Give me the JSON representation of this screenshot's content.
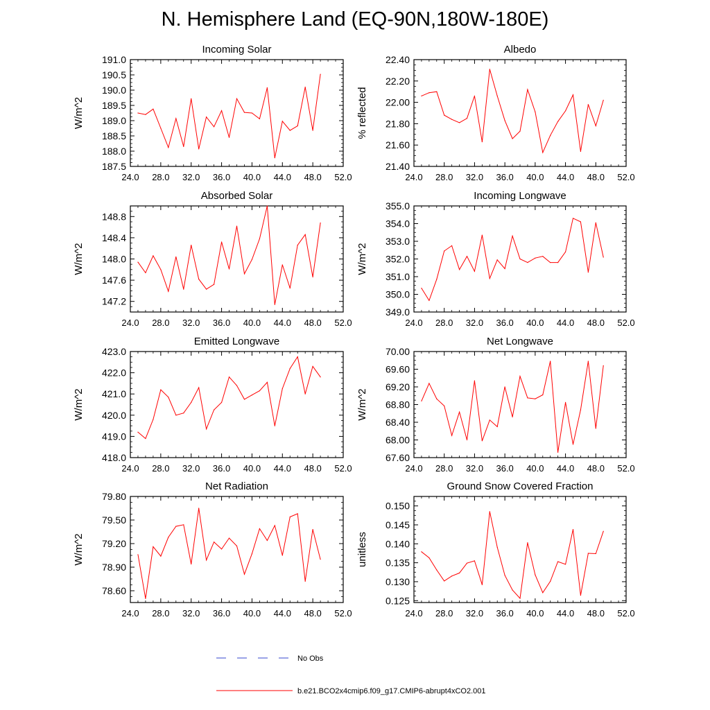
{
  "title": "N. Hemisphere Land (EQ-90N,180W-180E)",
  "colors": {
    "model": "#ff0000",
    "obs": "#3344cc",
    "axes": "#000000"
  },
  "legend": {
    "obs_label": "No Obs",
    "model_label": "b.e21.BCO2x4cmip6.f09_g17.CMIP6-abrupt4xCO2.001"
  },
  "chart_data": [
    {
      "type": "line",
      "title": "Incoming Solar",
      "xlabel": "",
      "ylabel": "W/m^2",
      "xlim": [
        24,
        52
      ],
      "ylim": [
        187.5,
        191.0
      ],
      "xticks": [
        24,
        28,
        32,
        36,
        40,
        44,
        48,
        52
      ],
      "xticklabels": [
        "24.0",
        "28.0",
        "32.0",
        "36.0",
        "40.0",
        "44.0",
        "48.0",
        "52.0"
      ],
      "yticks": [
        187.5,
        188.0,
        188.5,
        189.0,
        189.5,
        190.0,
        190.5,
        191.0
      ],
      "yticklabels": [
        "187.5",
        "188.0",
        "188.5",
        "189.0",
        "189.5",
        "190.0",
        "190.5",
        "191.0"
      ],
      "x": [
        25,
        26,
        27,
        28,
        29,
        30,
        31,
        32,
        33,
        34,
        35,
        36,
        37,
        38,
        39,
        40,
        41,
        42,
        43,
        44,
        45,
        46,
        47,
        48,
        49
      ],
      "series": [
        {
          "values": [
            189.25,
            189.2,
            189.38,
            188.75,
            188.12,
            189.07,
            188.15,
            189.72,
            188.07,
            189.12,
            188.8,
            189.33,
            188.45,
            189.72,
            189.27,
            189.25,
            189.06,
            190.08,
            187.78,
            188.98,
            188.68,
            188.83,
            190.1,
            188.68,
            190.52
          ]
        }
      ]
    },
    {
      "type": "line",
      "title": "Albedo",
      "xlabel": "",
      "ylabel": "% reflected",
      "xlim": [
        24,
        52
      ],
      "ylim": [
        21.4,
        22.4
      ],
      "xticks": [
        24,
        28,
        32,
        36,
        40,
        44,
        48,
        52
      ],
      "xticklabels": [
        "24.0",
        "28.0",
        "32.0",
        "36.0",
        "40.0",
        "44.0",
        "48.0",
        "52.0"
      ],
      "yticks": [
        21.4,
        21.6,
        21.8,
        22.0,
        22.2,
        22.4
      ],
      "yticklabels": [
        "21.40",
        "21.60",
        "21.80",
        "22.00",
        "22.20",
        "22.40"
      ],
      "x": [
        25,
        26,
        27,
        28,
        29,
        30,
        31,
        32,
        33,
        34,
        35,
        36,
        37,
        38,
        39,
        40,
        41,
        42,
        43,
        44,
        45,
        46,
        47,
        48,
        49
      ],
      "series": [
        {
          "values": [
            22.06,
            22.09,
            22.1,
            21.88,
            21.84,
            21.81,
            21.85,
            22.06,
            21.63,
            22.31,
            22.06,
            21.83,
            21.66,
            21.73,
            22.12,
            21.91,
            21.53,
            21.69,
            21.82,
            21.92,
            22.07,
            21.54,
            21.98,
            21.78,
            22.02
          ]
        }
      ]
    },
    {
      "type": "line",
      "title": "Absorbed Solar",
      "xlabel": "",
      "ylabel": "W/m^2",
      "xlim": [
        24,
        52
      ],
      "ylim": [
        147.0,
        149.0
      ],
      "xticks": [
        24,
        28,
        32,
        36,
        40,
        44,
        48,
        52
      ],
      "xticklabels": [
        "24.0",
        "28.0",
        "32.0",
        "36.0",
        "40.0",
        "44.0",
        "48.0",
        "52.0"
      ],
      "yticks": [
        147.2,
        147.6,
        148.0,
        148.4,
        148.8
      ],
      "yticklabels": [
        "147.2",
        "147.6",
        "148.0",
        "148.4",
        "148.8"
      ],
      "x": [
        25,
        26,
        27,
        28,
        29,
        30,
        31,
        32,
        33,
        34,
        35,
        36,
        37,
        38,
        39,
        40,
        41,
        42,
        43,
        44,
        45,
        46,
        47,
        48,
        49
      ],
      "series": [
        {
          "values": [
            147.94,
            147.74,
            148.06,
            147.8,
            147.39,
            148.04,
            147.43,
            148.26,
            147.62,
            147.43,
            147.52,
            148.32,
            147.81,
            148.62,
            147.72,
            147.99,
            148.38,
            149.0,
            147.14,
            147.89,
            147.45,
            148.26,
            148.46,
            147.66,
            148.68
          ]
        }
      ]
    },
    {
      "type": "line",
      "title": "Incoming Longwave",
      "xlabel": "",
      "ylabel": "W/m^2",
      "xlim": [
        24,
        52
      ],
      "ylim": [
        349.0,
        355.0
      ],
      "xticks": [
        24,
        28,
        32,
        36,
        40,
        44,
        48,
        52
      ],
      "xticklabels": [
        "24.0",
        "28.0",
        "32.0",
        "36.0",
        "40.0",
        "44.0",
        "48.0",
        "52.0"
      ],
      "yticks": [
        349,
        350,
        351,
        352,
        353,
        354,
        355
      ],
      "yticklabels": [
        "349.0",
        "350.0",
        "351.0",
        "352.0",
        "353.0",
        "354.0",
        "355.0"
      ],
      "x": [
        25,
        26,
        27,
        28,
        29,
        30,
        31,
        32,
        33,
        34,
        35,
        36,
        37,
        38,
        39,
        40,
        41,
        42,
        43,
        44,
        45,
        46,
        47,
        48,
        49
      ],
      "series": [
        {
          "values": [
            350.35,
            349.65,
            350.85,
            352.45,
            352.75,
            351.4,
            352.15,
            351.3,
            353.35,
            350.9,
            351.95,
            351.45,
            353.3,
            352.0,
            351.8,
            352.05,
            352.15,
            351.8,
            351.8,
            352.4,
            354.3,
            354.1,
            351.25,
            354.05,
            352.1
          ]
        }
      ]
    },
    {
      "type": "line",
      "title": "Emitted Longwave",
      "xlabel": "",
      "ylabel": "W/m^2",
      "xlim": [
        24,
        52
      ],
      "ylim": [
        418.0,
        423.0
      ],
      "xticks": [
        24,
        28,
        32,
        36,
        40,
        44,
        48,
        52
      ],
      "xticklabels": [
        "24.0",
        "28.0",
        "32.0",
        "36.0",
        "40.0",
        "44.0",
        "48.0",
        "52.0"
      ],
      "yticks": [
        418,
        419,
        420,
        421,
        422,
        423
      ],
      "yticklabels": [
        "418.0",
        "419.0",
        "420.0",
        "421.0",
        "422.0",
        "423.0"
      ],
      "x": [
        25,
        26,
        27,
        28,
        29,
        30,
        31,
        32,
        33,
        34,
        35,
        36,
        37,
        38,
        39,
        40,
        41,
        42,
        43,
        44,
        45,
        46,
        47,
        48,
        49
      ],
      "series": [
        {
          "values": [
            419.2,
            418.9,
            419.8,
            421.2,
            420.85,
            420.0,
            420.1,
            420.6,
            421.3,
            419.35,
            420.25,
            420.6,
            421.8,
            421.4,
            420.75,
            420.95,
            421.15,
            421.55,
            419.5,
            421.25,
            422.2,
            422.75,
            421.0,
            422.3,
            421.8
          ]
        }
      ]
    },
    {
      "type": "line",
      "title": "Net Longwave",
      "xlabel": "",
      "ylabel": "W/m^2",
      "xlim": [
        24,
        52
      ],
      "ylim": [
        67.6,
        70.0
      ],
      "xticks": [
        24,
        28,
        32,
        36,
        40,
        44,
        48,
        52
      ],
      "xticklabels": [
        "24.0",
        "28.0",
        "32.0",
        "36.0",
        "40.0",
        "44.0",
        "48.0",
        "52.0"
      ],
      "yticks": [
        67.6,
        68.0,
        68.4,
        68.8,
        69.2,
        69.6,
        70.0
      ],
      "yticklabels": [
        "67.60",
        "68.00",
        "68.40",
        "68.80",
        "69.20",
        "69.60",
        "70.00"
      ],
      "x": [
        25,
        26,
        27,
        28,
        29,
        30,
        31,
        32,
        33,
        34,
        35,
        36,
        37,
        38,
        39,
        40,
        41,
        42,
        43,
        44,
        45,
        46,
        47,
        48,
        49
      ],
      "series": [
        {
          "values": [
            68.88,
            69.28,
            68.93,
            68.77,
            68.1,
            68.63,
            68.0,
            69.34,
            67.98,
            68.45,
            68.3,
            69.2,
            68.52,
            69.44,
            68.95,
            68.93,
            69.02,
            69.78,
            67.72,
            68.85,
            67.9,
            68.68,
            69.78,
            68.26,
            69.68
          ]
        }
      ]
    },
    {
      "type": "line",
      "title": "Net Radiation",
      "xlabel": "",
      "ylabel": "W/m^2",
      "xlim": [
        24,
        52
      ],
      "ylim": [
        78.45,
        79.8
      ],
      "xticks": [
        24,
        28,
        32,
        36,
        40,
        44,
        48,
        52
      ],
      "xticklabels": [
        "24.0",
        "28.0",
        "32.0",
        "36.0",
        "40.0",
        "44.0",
        "48.0",
        "52.0"
      ],
      "yticks": [
        78.6,
        78.9,
        79.2,
        79.5,
        79.8
      ],
      "yticklabels": [
        "78.60",
        "78.90",
        "79.20",
        "79.50",
        "79.80"
      ],
      "x": [
        25,
        26,
        27,
        28,
        29,
        30,
        31,
        32,
        33,
        34,
        35,
        36,
        37,
        38,
        39,
        40,
        41,
        42,
        43,
        44,
        45,
        46,
        47,
        48,
        49
      ],
      "series": [
        {
          "values": [
            79.06,
            78.5,
            79.16,
            79.04,
            79.28,
            79.42,
            79.44,
            78.94,
            79.65,
            78.99,
            79.22,
            79.13,
            79.27,
            79.17,
            78.81,
            79.07,
            79.39,
            79.24,
            79.43,
            79.05,
            79.54,
            79.58,
            78.72,
            79.38,
            79.0
          ]
        }
      ]
    },
    {
      "type": "line",
      "title": "Ground Snow Covered Fraction",
      "xlabel": "",
      "ylabel": "unitless",
      "xlim": [
        24,
        52
      ],
      "ylim": [
        0.1245,
        0.1525
      ],
      "xticks": [
        24,
        28,
        32,
        36,
        40,
        44,
        48,
        52
      ],
      "xticklabels": [
        "24.0",
        "28.0",
        "32.0",
        "36.0",
        "40.0",
        "44.0",
        "48.0",
        "52.0"
      ],
      "yticks": [
        0.125,
        0.13,
        0.135,
        0.14,
        0.145,
        0.15
      ],
      "yticklabels": [
        "0.125",
        "0.130",
        "0.135",
        "0.140",
        "0.145",
        "0.150"
      ],
      "x": [
        25,
        26,
        27,
        28,
        29,
        30,
        31,
        32,
        33,
        34,
        35,
        36,
        37,
        38,
        39,
        40,
        41,
        42,
        43,
        44,
        45,
        46,
        47,
        48,
        49
      ],
      "series": [
        {
          "values": [
            0.1379,
            0.1363,
            0.1331,
            0.1302,
            0.1315,
            0.1323,
            0.1349,
            0.1355,
            0.1292,
            0.1485,
            0.1391,
            0.1317,
            0.1278,
            0.1256,
            0.1403,
            0.1318,
            0.1271,
            0.1301,
            0.1353,
            0.1346,
            0.1438,
            0.1264,
            0.1375,
            0.1374,
            0.1433
          ]
        }
      ]
    }
  ]
}
